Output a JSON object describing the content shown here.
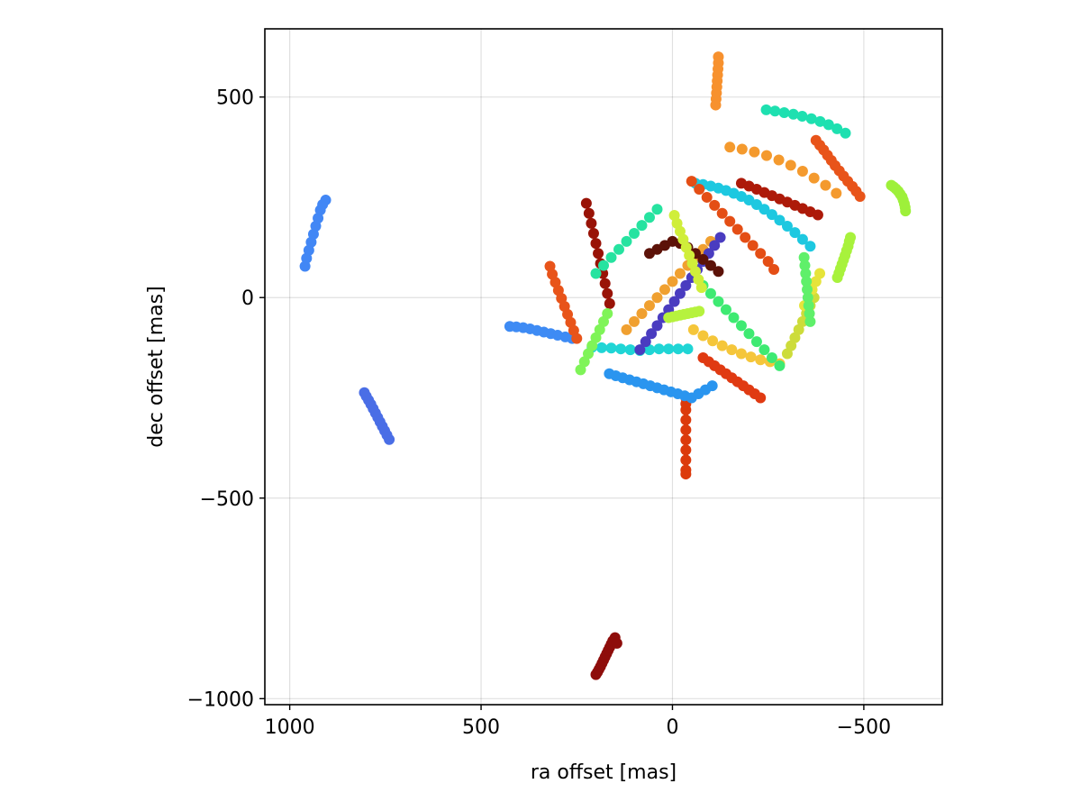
{
  "chart_data": {
    "type": "scatter",
    "title": "",
    "xlabel": "ra offset [mas]",
    "ylabel": "dec offset [mas]",
    "xlim": [
      1065,
      -705
    ],
    "ylim": [
      -1015,
      670
    ],
    "x_reversed": true,
    "grid": true,
    "legend": "none",
    "xticks": [
      1000,
      500,
      0,
      -500
    ],
    "xtick_labels": [
      "1000",
      "500",
      "0",
      "−500"
    ],
    "yticks": [
      500,
      0,
      -500,
      -1000
    ],
    "ytick_labels": [
      "500",
      "0",
      "−500",
      "−1000"
    ],
    "series": [
      {
        "color": "#f7912e",
        "x": [
          -120,
          -120,
          -119,
          -118,
          -117,
          -116,
          -115,
          -114,
          -113
        ],
        "y": [
          600,
          585,
          570,
          555,
          540,
          525,
          510,
          495,
          480
        ]
      },
      {
        "color": "#1ee0b0",
        "x": [
          -245,
          -268,
          -292,
          -316,
          -339,
          -363,
          -386,
          -408,
          -430,
          -452
        ],
        "y": [
          468,
          465,
          461,
          457,
          452,
          446,
          439,
          431,
          421,
          410
        ]
      },
      {
        "color": "#f49a2e",
        "x": [
          -150,
          -182,
          -214,
          -246,
          -278,
          -309,
          -340,
          -370,
          -400,
          -428
        ],
        "y": [
          375,
          370,
          363,
          354,
          343,
          330,
          315,
          298,
          280,
          260
        ]
      },
      {
        "color": "#e8541a",
        "x": [
          -375,
          -385,
          -395,
          -405,
          -415,
          -425,
          -436,
          -447,
          -458,
          -470,
          -480,
          -490
        ],
        "y": [
          392,
          380,
          368,
          355,
          342,
          329,
          316,
          303,
          290,
          277,
          265,
          252
        ]
      },
      {
        "color": "#9ef03a",
        "x": [
          -572,
          -578,
          -584,
          -590,
          -595,
          -600,
          -603,
          -606,
          -608,
          -609
        ],
        "y": [
          280,
          276,
          271,
          265,
          258,
          251,
          243,
          234,
          225,
          216
        ]
      },
      {
        "color": "#4287f5",
        "x": [
          960,
          956,
          950,
          944,
          938,
          932,
          926,
          920,
          914,
          906
        ],
        "y": [
          78,
          98,
          118,
          138,
          158,
          178,
          198,
          218,
          232,
          243
        ]
      },
      {
        "color": "#4a6ee6",
        "x": [
          805,
          800,
          794,
          788,
          782,
          776,
          770,
          764,
          758,
          752,
          746,
          740
        ],
        "y": [
          -237,
          -246,
          -256,
          -266,
          -277,
          -288,
          -299,
          -310,
          -321,
          -332,
          -343,
          -354
        ]
      },
      {
        "color": "#8e0d0b",
        "x": [
          200,
          196,
          192,
          188,
          184,
          180,
          176,
          172,
          168,
          164,
          160,
          156,
          150,
          145
        ],
        "y": [
          -940,
          -934,
          -927,
          -920,
          -912,
          -904,
          -896,
          -888,
          -880,
          -872,
          -864,
          -856,
          -848,
          -862
        ]
      },
      {
        "color": "#dc3a0b",
        "x": [
          -35,
          -35,
          -35,
          -35,
          -35,
          -35,
          -35,
          -35,
          -35,
          -35
        ],
        "y": [
          -250,
          -280,
          -305,
          -330,
          -355,
          -380,
          -405,
          -430,
          -440,
          -265
        ]
      },
      {
        "color": "#a8f23c",
        "x": [
          -465,
          -462,
          -459,
          -455,
          -451,
          -447,
          -443,
          -439,
          -435,
          -431
        ],
        "y": [
          150,
          140,
          128,
          117,
          105,
          94,
          83,
          72,
          61,
          50
        ]
      },
      {
        "color": "#1fd5d5",
        "x": [
          -40,
          -15,
          10,
          35,
          60,
          85,
          110,
          135,
          160,
          185,
          210
        ],
        "y": [
          -128,
          -128,
          -128,
          -128,
          -130,
          -132,
          -130,
          -128,
          -126,
          -125,
          -124
        ]
      },
      {
        "color": "#3e8bf4",
        "x": [
          425,
          408,
          390,
          372,
          354,
          336,
          318,
          300,
          280,
          262
        ],
        "y": [
          -72,
          -73,
          -75,
          -78,
          -82,
          -86,
          -90,
          -94,
          -98,
          -102
        ]
      },
      {
        "color": "#1dc8e0",
        "x": [
          -60,
          -80,
          -100,
          -120,
          -140,
          -160,
          -180,
          -200,
          -220,
          -240,
          -260,
          -280,
          -300,
          -320,
          -340,
          -360
        ],
        "y": [
          285,
          282,
          278,
          273,
          267,
          260,
          252,
          243,
          232,
          220,
          207,
          193,
          178,
          162,
          145,
          128
        ]
      },
      {
        "color": "#e8541a",
        "x": [
          320,
          314,
          306,
          298,
          290,
          282,
          274,
          266,
          258,
          250
        ],
        "y": [
          78,
          58,
          38,
          18,
          -2,
          -22,
          -42,
          -62,
          -82,
          -102
        ]
      },
      {
        "color": "#cddc3a",
        "x": [
          -300,
          -310,
          -320,
          -330,
          -340,
          -350,
          -360,
          -370
        ],
        "y": [
          -140,
          -120,
          -100,
          -80,
          -60,
          -40,
          -20,
          0
        ]
      },
      {
        "color": "#e6e43a",
        "x": [
          -345,
          -355,
          -365,
          -375,
          -385
        ],
        "y": [
          -20,
          0,
          20,
          40,
          60
        ]
      },
      {
        "color": "#f5c63a",
        "x": [
          -55,
          -80,
          -105,
          -130,
          -155,
          -180,
          -205,
          -230,
          -255,
          -280
        ],
        "y": [
          -80,
          -95,
          -108,
          -120,
          -130,
          -140,
          -148,
          -155,
          -160,
          -165
        ]
      },
      {
        "color": "#f0a030",
        "x": [
          120,
          100,
          80,
          60,
          40,
          20,
          0,
          -20,
          -40,
          -60,
          -80,
          -100
        ],
        "y": [
          -80,
          -60,
          -40,
          -20,
          0,
          20,
          40,
          60,
          80,
          100,
          120,
          140
        ]
      },
      {
        "color": "#991307",
        "x": [
          225,
          218,
          212,
          206,
          200,
          194,
          188,
          182,
          176,
          170,
          164
        ],
        "y": [
          235,
          210,
          185,
          160,
          135,
          110,
          85,
          60,
          35,
          10,
          -15
        ]
      },
      {
        "color": "#ad1a09",
        "x": [
          -180,
          -200,
          -220,
          -240,
          -260,
          -280,
          -300,
          -320,
          -340,
          -360,
          -380
        ],
        "y": [
          285,
          278,
          270,
          262,
          254,
          246,
          238,
          230,
          222,
          214,
          206
        ]
      },
      {
        "color": "#e44e15",
        "x": [
          -50,
          -70,
          -90,
          -110,
          -130,
          -150,
          -170,
          -190,
          -210,
          -230,
          -250,
          -265
        ],
        "y": [
          290,
          270,
          250,
          230,
          210,
          190,
          170,
          150,
          130,
          110,
          90,
          70
        ]
      },
      {
        "color": "#4a3cc0",
        "x": [
          85,
          70,
          55,
          40,
          25,
          10,
          -5,
          -20,
          -35,
          -50,
          -65,
          -80,
          -95,
          -110,
          -125
        ],
        "y": [
          -130,
          -110,
          -90,
          -70,
          -50,
          -30,
          -10,
          10,
          30,
          50,
          70,
          90,
          110,
          130,
          150
        ]
      },
      {
        "color": "#3eea72",
        "x": [
          -80,
          -100,
          -120,
          -140,
          -160,
          -180,
          -200,
          -220,
          -240,
          -260,
          -280
        ],
        "y": [
          30,
          10,
          -10,
          -30,
          -50,
          -70,
          -90,
          -110,
          -130,
          -150,
          -170
        ]
      },
      {
        "color": "#2a95ef",
        "x": [
          165,
          148,
          130,
          112,
          94,
          76,
          58,
          40,
          22,
          4,
          -14,
          -32,
          -50,
          -68,
          -86,
          -104
        ],
        "y": [
          -190,
          -195,
          -200,
          -205,
          -210,
          -215,
          -220,
          -225,
          -230,
          -235,
          -240,
          -245,
          -250,
          -240,
          -230,
          -220
        ]
      },
      {
        "color": "#26e3a0",
        "x": [
          200,
          180,
          160,
          140,
          120,
          100,
          80,
          60,
          40
        ],
        "y": [
          60,
          80,
          100,
          120,
          140,
          160,
          180,
          200,
          220
        ]
      },
      {
        "color": "#7ff458",
        "x": [
          240,
          230,
          220,
          210,
          200,
          190,
          180,
          170
        ],
        "y": [
          -180,
          -160,
          -140,
          -120,
          -100,
          -80,
          -60,
          -40
        ]
      },
      {
        "color": "#5ff06a",
        "x": [
          -360,
          -358,
          -356,
          -354,
          -352,
          -350,
          -348,
          -346,
          -344
        ],
        "y": [
          -60,
          -40,
          -20,
          0,
          20,
          40,
          60,
          80,
          100
        ]
      },
      {
        "color": "#b6f23e",
        "x": [
          10,
          0,
          -10,
          -20,
          -30,
          -40,
          -50,
          -60,
          -70
        ],
        "y": [
          -50,
          -48,
          -46,
          -44,
          -42,
          -40,
          -38,
          -36,
          -34
        ]
      },
      {
        "color": "#5c1208",
        "x": [
          60,
          40,
          20,
          0,
          -20,
          -40,
          -60,
          -80,
          -100,
          -120
        ],
        "y": [
          110,
          120,
          130,
          140,
          135,
          125,
          110,
          95,
          80,
          65
        ]
      },
      {
        "color": "#e03a12",
        "x": [
          -80,
          -95,
          -110,
          -125,
          -140,
          -155,
          -170,
          -185,
          -200,
          -215,
          -230
        ],
        "y": [
          -150,
          -160,
          -170,
          -180,
          -190,
          -200,
          -210,
          -220,
          -230,
          -240,
          -250
        ]
      },
      {
        "color": "#d0ee3a",
        "x": [
          -5,
          -12,
          -20,
          -28,
          -36,
          -44,
          -52,
          -60,
          -68,
          -76
        ],
        "y": [
          205,
          185,
          165,
          145,
          125,
          105,
          85,
          65,
          45,
          25
        ]
      }
    ]
  }
}
